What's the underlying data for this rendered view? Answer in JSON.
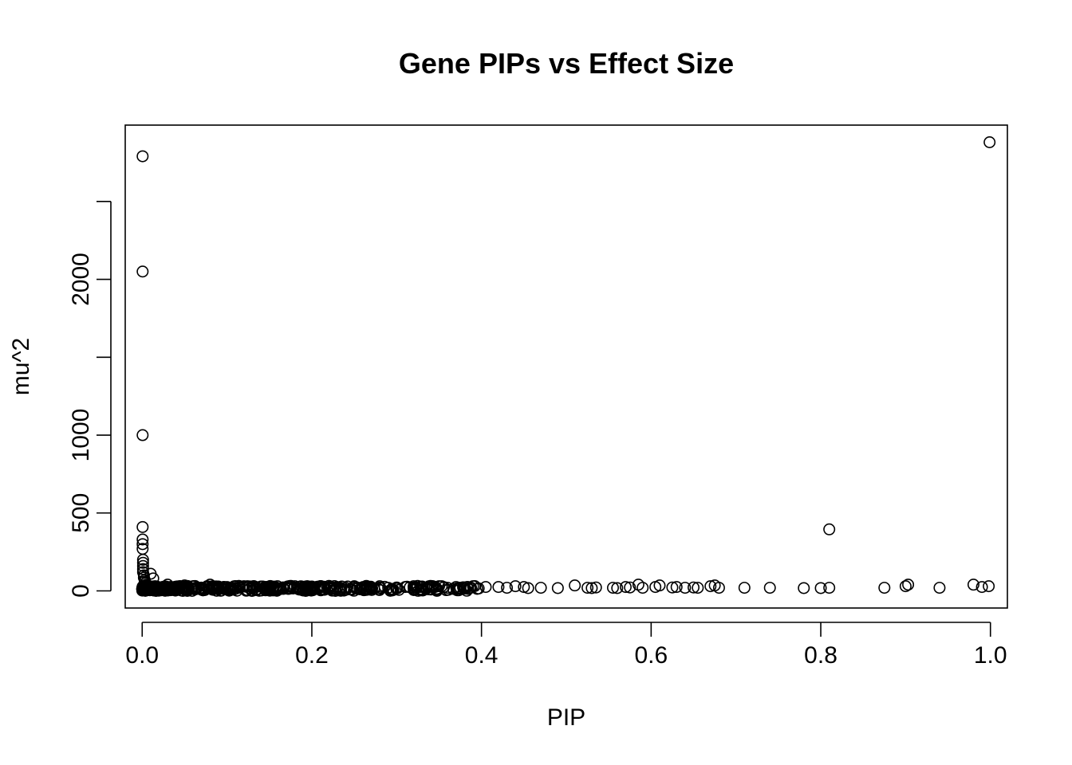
{
  "chart_data": {
    "type": "scatter",
    "title": "Gene PIPs vs Effect Size",
    "xlabel": "PIP",
    "ylabel": "mu^2",
    "xlim": [
      -0.02,
      1.02
    ],
    "ylim": [
      -110,
      2990
    ],
    "x_ticks": [
      {
        "value": 0.0,
        "label": "0.0"
      },
      {
        "value": 0.2,
        "label": "0.2"
      },
      {
        "value": 0.4,
        "label": "0.4"
      },
      {
        "value": 0.6,
        "label": "0.6"
      },
      {
        "value": 0.8,
        "label": "0.8"
      },
      {
        "value": 1.0,
        "label": "1.0"
      }
    ],
    "y_ticks": [
      {
        "value": 0,
        "label": "0"
      },
      {
        "value": 500,
        "label": "500"
      },
      {
        "value": 1000,
        "label": "1000"
      },
      {
        "value": 1500,
        "label": ""
      },
      {
        "value": 2000,
        "label": "2000"
      },
      {
        "value": 2500,
        "label": ""
      }
    ],
    "grid": false,
    "legend": "none",
    "marker": "open-circle",
    "points": [
      [
        0.0005,
        2790
      ],
      [
        0.0005,
        2050
      ],
      [
        0.0005,
        1000
      ],
      [
        0.0005,
        410
      ],
      [
        0.0005,
        330
      ],
      [
        0.0005,
        300
      ],
      [
        0.0005,
        270
      ],
      [
        0.001,
        200
      ],
      [
        0.001,
        180
      ],
      [
        0.001,
        160
      ],
      [
        0.001,
        140
      ],
      [
        0.001,
        120
      ],
      [
        0.002,
        100
      ],
      [
        0.002,
        85
      ],
      [
        0.003,
        70
      ],
      [
        0.003,
        60
      ],
      [
        0.004,
        50
      ],
      [
        0.005,
        40
      ],
      [
        0.006,
        32
      ],
      [
        0.007,
        25
      ],
      [
        0.01,
        110
      ],
      [
        0.013,
        80
      ],
      [
        0.015,
        30
      ],
      [
        0.02,
        15
      ],
      [
        0.025,
        20
      ],
      [
        0.03,
        40
      ],
      [
        0.035,
        10
      ],
      [
        0.04,
        18
      ],
      [
        0.05,
        35
      ],
      [
        0.055,
        12
      ],
      [
        0.06,
        30
      ],
      [
        0.07,
        15
      ],
      [
        0.08,
        40
      ],
      [
        0.09,
        20
      ],
      [
        0.1,
        25
      ],
      [
        0.11,
        15
      ],
      [
        0.12,
        30
      ],
      [
        0.13,
        18
      ],
      [
        0.14,
        28
      ],
      [
        0.15,
        22
      ],
      [
        0.16,
        15
      ],
      [
        0.17,
        25
      ],
      [
        0.18,
        30
      ],
      [
        0.19,
        20
      ],
      [
        0.2,
        28
      ],
      [
        0.21,
        30
      ],
      [
        0.22,
        22
      ],
      [
        0.23,
        25
      ],
      [
        0.24,
        20
      ],
      [
        0.25,
        30
      ],
      [
        0.26,
        22
      ],
      [
        0.27,
        18
      ],
      [
        0.28,
        30
      ],
      [
        0.29,
        20
      ],
      [
        0.3,
        22
      ],
      [
        0.31,
        25
      ],
      [
        0.32,
        30
      ],
      [
        0.33,
        28
      ],
      [
        0.34,
        32
      ],
      [
        0.35,
        30
      ],
      [
        0.36,
        20
      ],
      [
        0.37,
        25
      ],
      [
        0.38,
        18
      ],
      [
        0.39,
        30
      ],
      [
        0.405,
        25
      ],
      [
        0.42,
        25
      ],
      [
        0.43,
        20
      ],
      [
        0.44,
        30
      ],
      [
        0.45,
        25
      ],
      [
        0.455,
        18
      ],
      [
        0.47,
        20
      ],
      [
        0.49,
        18
      ],
      [
        0.51,
        35
      ],
      [
        0.525,
        20
      ],
      [
        0.53,
        18
      ],
      [
        0.535,
        22
      ],
      [
        0.555,
        20
      ],
      [
        0.56,
        18
      ],
      [
        0.57,
        25
      ],
      [
        0.575,
        22
      ],
      [
        0.585,
        40
      ],
      [
        0.59,
        20
      ],
      [
        0.605,
        25
      ],
      [
        0.61,
        35
      ],
      [
        0.625,
        22
      ],
      [
        0.63,
        25
      ],
      [
        0.64,
        20
      ],
      [
        0.65,
        22
      ],
      [
        0.655,
        20
      ],
      [
        0.67,
        30
      ],
      [
        0.675,
        35
      ],
      [
        0.68,
        20
      ],
      [
        0.71,
        20
      ],
      [
        0.74,
        20
      ],
      [
        0.78,
        18
      ],
      [
        0.8,
        18
      ],
      [
        0.81,
        20
      ],
      [
        0.81,
        395
      ],
      [
        0.875,
        20
      ],
      [
        0.9,
        30
      ],
      [
        0.903,
        40
      ],
      [
        0.94,
        20
      ],
      [
        0.98,
        40
      ],
      [
        0.99,
        25
      ],
      [
        0.998,
        30
      ],
      [
        0.999,
        2880
      ]
    ],
    "dense_band": {
      "x_from": 0.0,
      "x_to": 0.4,
      "y_min": 0,
      "y_max": 32,
      "count": 420
    }
  }
}
